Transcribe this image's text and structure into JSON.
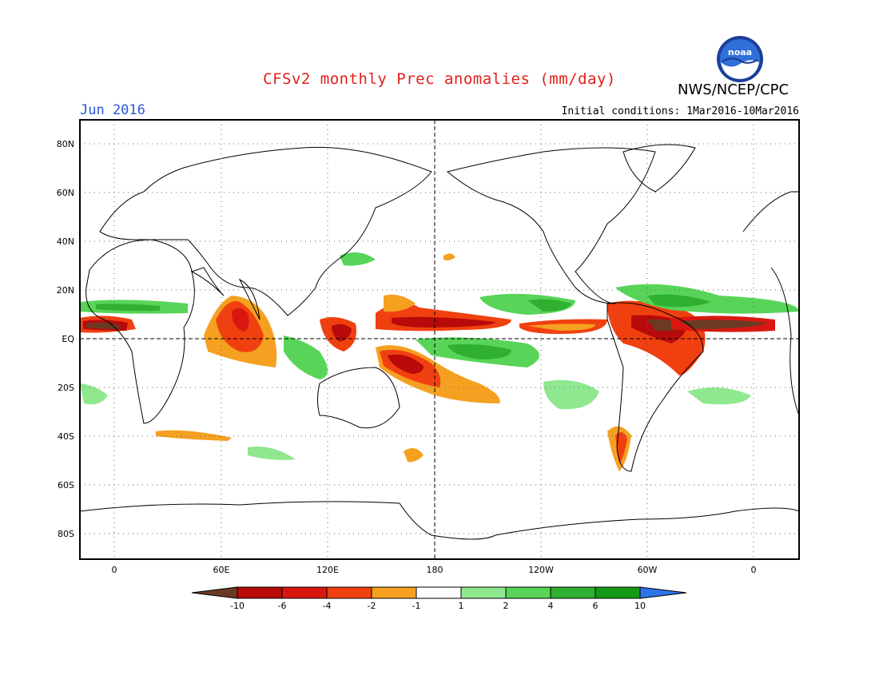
{
  "header": {
    "title": "CFSv2 monthly Prec anomalies (mm/day)",
    "org": "NWS/NCEP/CPC",
    "month": "Jun 2016",
    "initial_conditions": "Initial conditions: 1Mar2016-10Mar2016",
    "logo_text": "noaa"
  },
  "map": {
    "lat_labels": [
      "80N",
      "60N",
      "40N",
      "20N",
      "EQ",
      "20S",
      "40S",
      "60S",
      "80S"
    ],
    "lon_labels": [
      "0",
      "60E",
      "120E",
      "180",
      "120W",
      "60W",
      "0"
    ]
  },
  "colorbar": {
    "labels": [
      "-10",
      "-6",
      "-4",
      "-2",
      "-1",
      "1",
      "2",
      "4",
      "6",
      "10"
    ],
    "colors": [
      "#6b3a22",
      "#b80a0a",
      "#d81810",
      "#f04010",
      "#f5a020",
      "#ffffff",
      "#8fe88f",
      "#58d458",
      "#30b030",
      "#159a15",
      "#2d74e8"
    ]
  }
}
